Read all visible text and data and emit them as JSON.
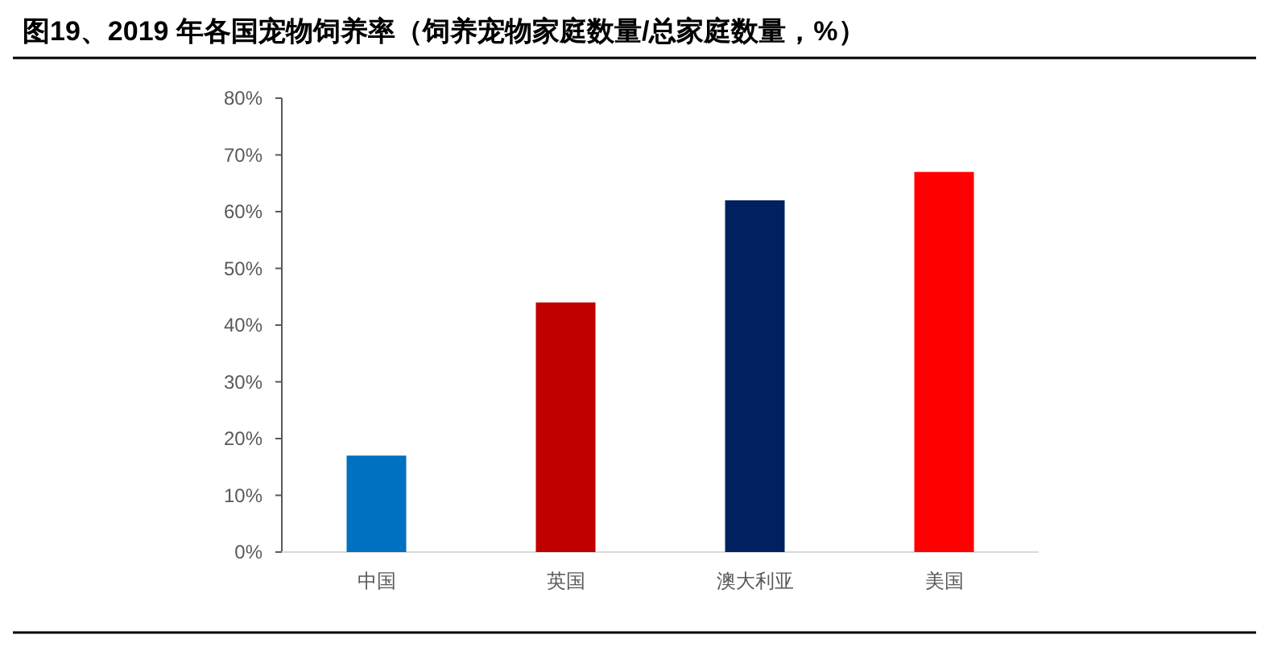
{
  "chart_data": {
    "type": "bar",
    "title": "图19、2019 年各国宠物饲养率（饲养宠物家庭数量/总家庭数量，%）",
    "categories": [
      "中国",
      "英国",
      "澳大利亚",
      "美国"
    ],
    "values": [
      17,
      44,
      62,
      67
    ],
    "colors": [
      "#0070c0",
      "#c00000",
      "#002060",
      "#ff0000"
    ],
    "ylim": [
      0,
      80
    ],
    "yticks": [
      {
        "value": 0,
        "label": "0%"
      },
      {
        "value": 10,
        "label": "10%"
      },
      {
        "value": 20,
        "label": "20%"
      },
      {
        "value": 30,
        "label": "30%"
      },
      {
        "value": 40,
        "label": "40%"
      },
      {
        "value": 50,
        "label": "50%"
      },
      {
        "value": 60,
        "label": "60%"
      },
      {
        "value": 70,
        "label": "70%"
      },
      {
        "value": 80,
        "label": "80%"
      }
    ],
    "grid": false
  }
}
